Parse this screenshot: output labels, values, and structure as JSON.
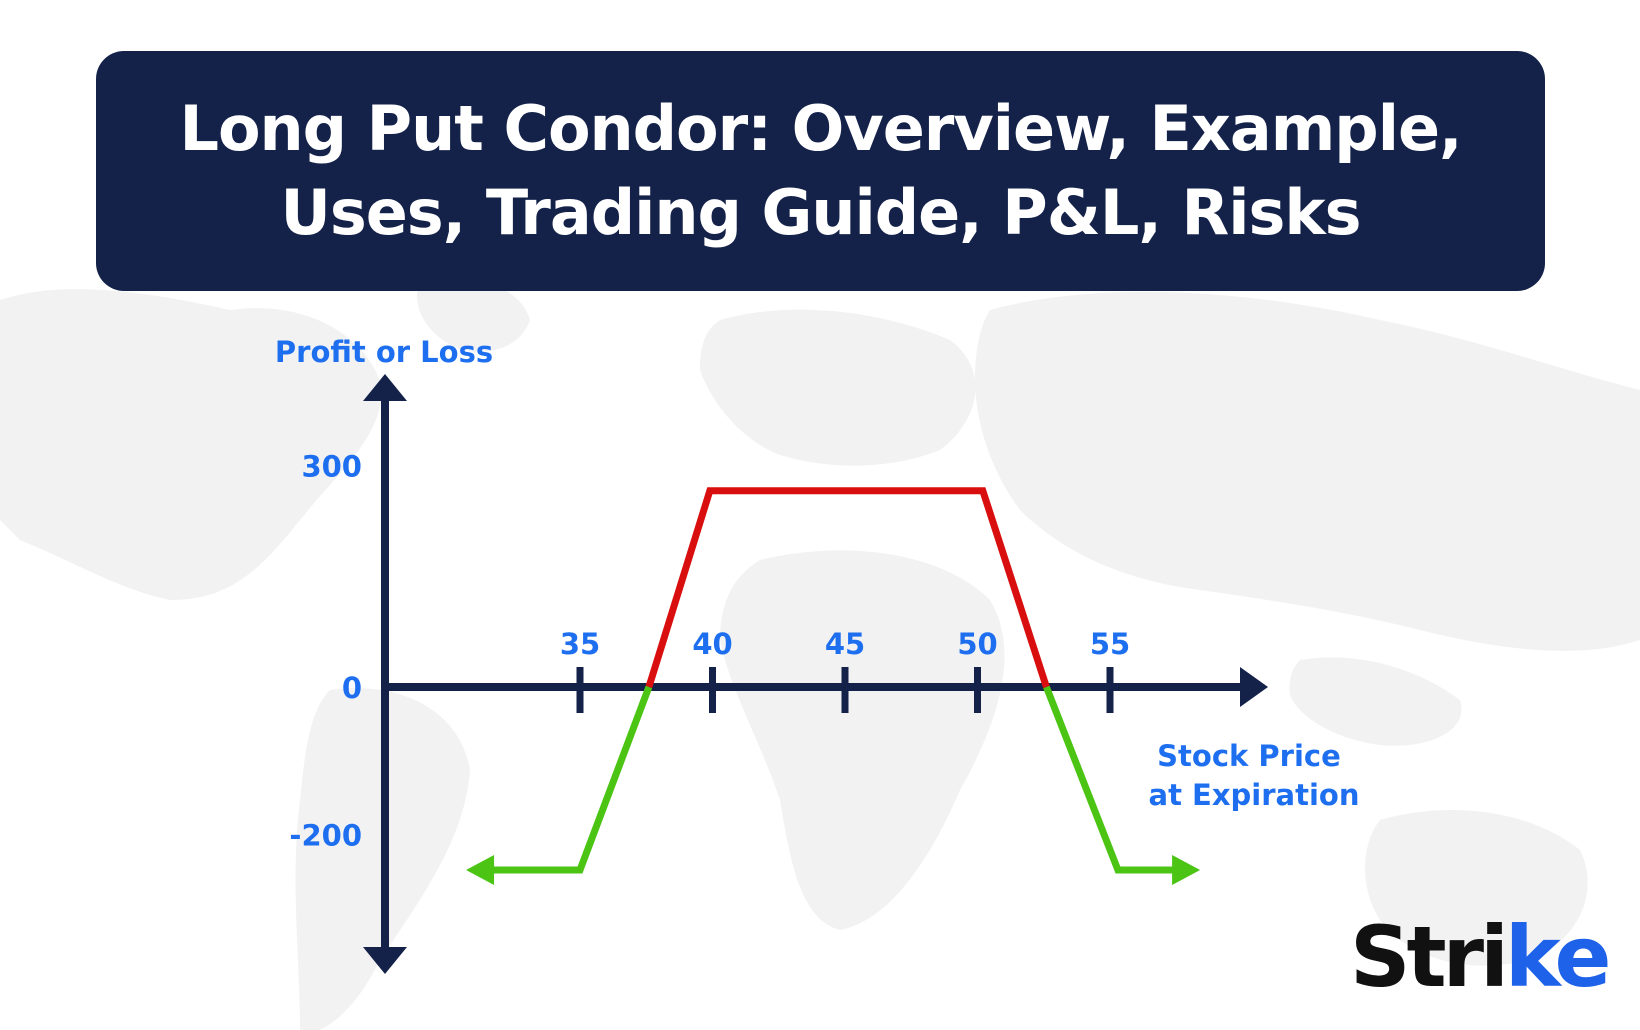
{
  "title": {
    "line1": "Long Put Condor: Overview, Example,",
    "line2": "Uses, Trading Guide, P&L, Risks"
  },
  "brand": {
    "main": "Stri",
    "accent": "ke"
  },
  "colors": {
    "title_bg": "#14224a",
    "axis": "#14224a",
    "labels": "#1e6ff0",
    "profit_line": "#d90f0f",
    "loss_line": "#4cc414",
    "brand_accent": "#1e62ea",
    "map": "#f1f1f1"
  },
  "chart_data": {
    "type": "line",
    "ylabel": "Profit or Loss",
    "xlabel": "Stock Price at Expiration",
    "xlabel_lines": [
      "Stock Price",
      "at Expiration"
    ],
    "x_ticks": [
      35,
      40,
      45,
      50,
      55
    ],
    "y_ticks": [
      300,
      0,
      -200
    ],
    "series": [
      {
        "segment": "profit",
        "color": "#d90f0f",
        "points": [
          [
            37.6,
            0
          ],
          [
            39.9,
            266
          ],
          [
            50.2,
            266
          ],
          [
            52.6,
            0
          ]
        ]
      },
      {
        "segment": "loss-left",
        "color": "#4cc414",
        "points": [
          [
            30.7,
            -248
          ],
          [
            35.0,
            -248
          ],
          [
            37.6,
            0
          ]
        ],
        "arrow": "left"
      },
      {
        "segment": "loss-right",
        "color": "#4cc414",
        "points": [
          [
            52.6,
            0
          ],
          [
            55.3,
            -248
          ],
          [
            58.4,
            -248
          ]
        ],
        "arrow": "right"
      }
    ]
  }
}
